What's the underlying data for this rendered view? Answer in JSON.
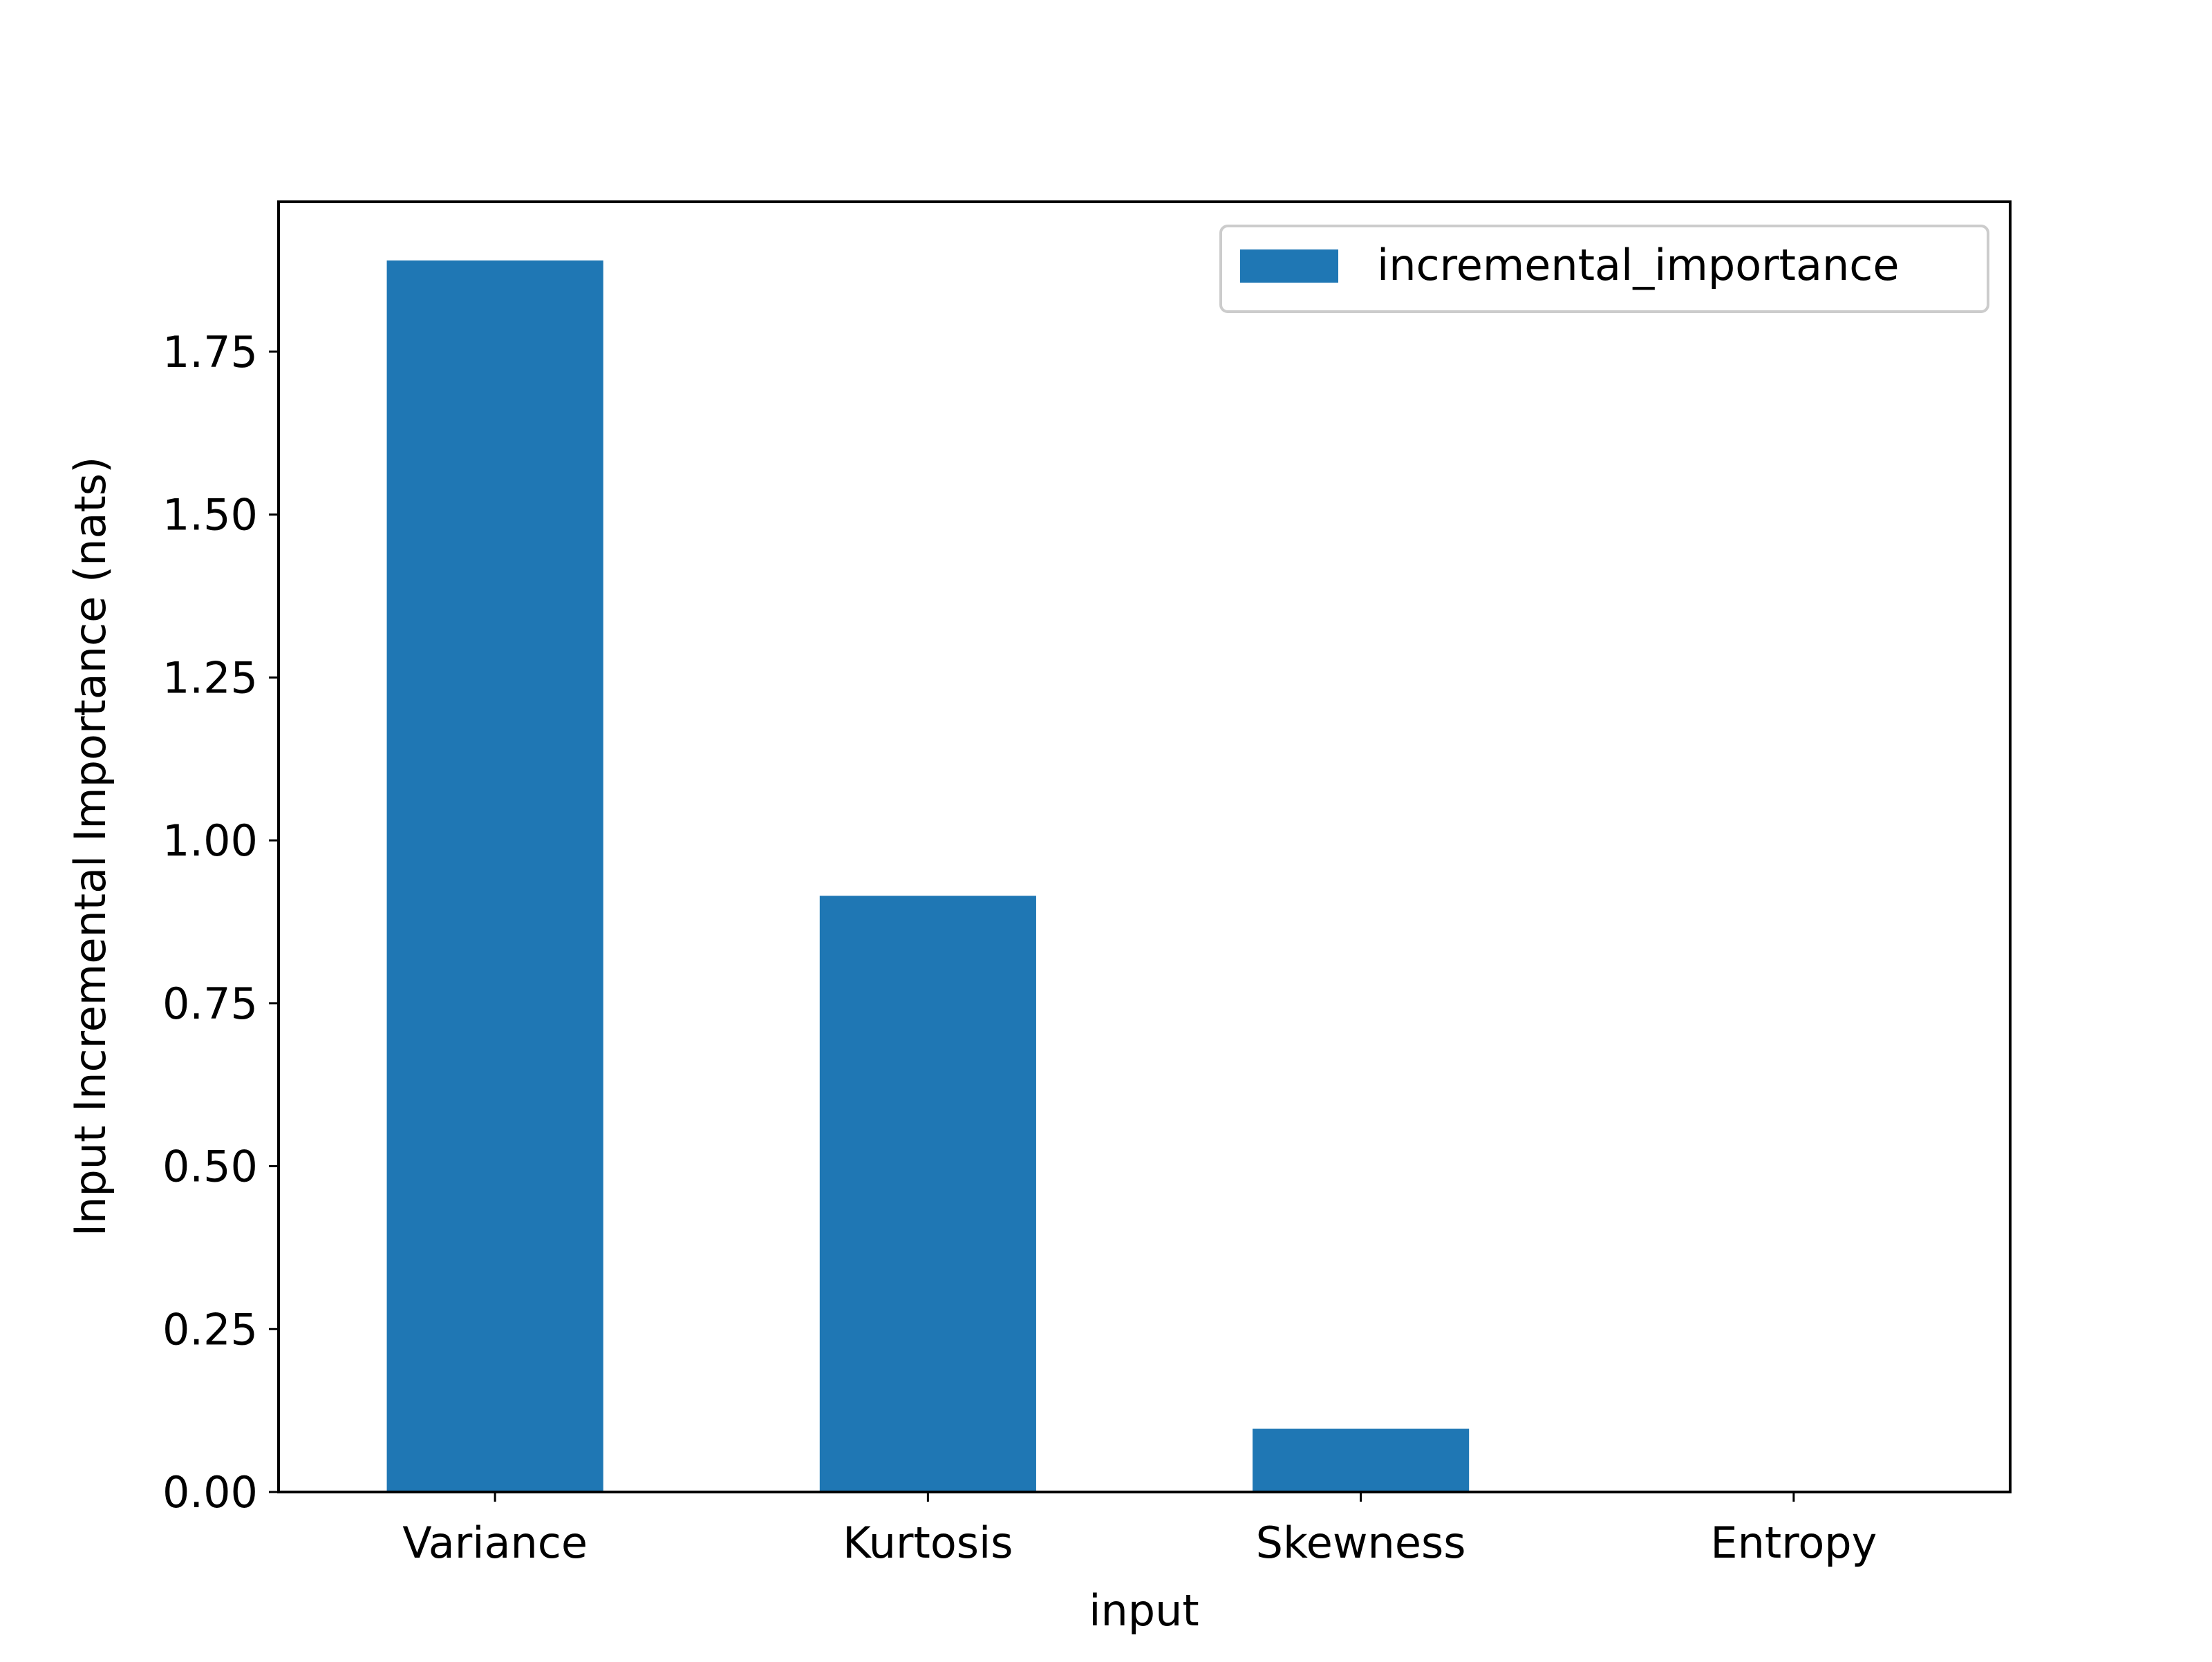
{
  "chart_data": {
    "type": "bar",
    "title": "",
    "xlabel": "input",
    "ylabel": "Input Incremental Importance (nats)",
    "categories": [
      "Variance",
      "Kurtosis",
      "Skewness",
      "Entropy"
    ],
    "series": [
      {
        "name": "incremental_importance",
        "values": [
          1.89,
          0.915,
          0.097,
          0.0
        ]
      }
    ],
    "ylim": [
      0,
      1.98
    ],
    "yticks": [
      0.0,
      0.25,
      0.5,
      0.75,
      1.0,
      1.25,
      1.5,
      1.75
    ],
    "ytick_labels": [
      "0.00",
      "0.25",
      "0.50",
      "0.75",
      "1.00",
      "1.25",
      "1.50",
      "1.75"
    ],
    "grid": false,
    "legend_position": "top-right",
    "colors": {
      "bar": "#1f77b4",
      "axes": "#000000",
      "background": "#ffffff"
    }
  }
}
